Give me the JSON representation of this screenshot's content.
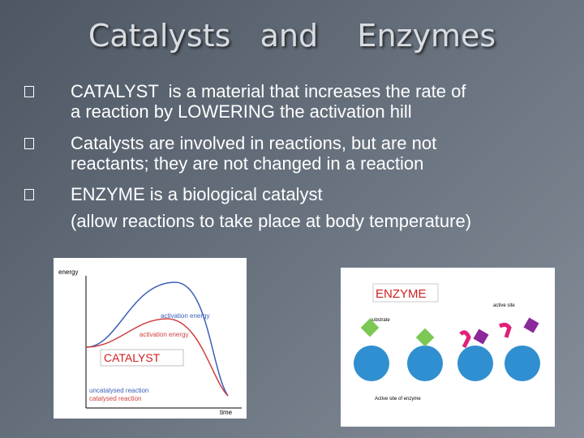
{
  "title": "Catalysts   and    Enzymes",
  "bullets": [
    [
      "CATALYST  is a material that increases the rate of",
      "a reaction by LOWERING the activation hill"
    ],
    [
      "Catalysts are involved in reactions, but are not",
      "reactants; they are not changed in a reaction"
    ],
    [
      "ENZYME is a biological catalyst",
      "(allow reactions to take place at body temperature)"
    ]
  ],
  "energy_diagram": {
    "y_axis": "energy",
    "x_axis": "time",
    "label_uncatalysed_peak": "activation energy",
    "label_catalysed_peak": "activation energy",
    "caption": "CATALYST",
    "legend_uncatalysed": "uncatalysed reaction",
    "legend_catalysed": "catalysed reaction"
  },
  "enzyme_diagram": {
    "caption": "ENZYME",
    "substrate": "substrate",
    "active_site": "active site",
    "footer": "Active site of enzyme"
  }
}
